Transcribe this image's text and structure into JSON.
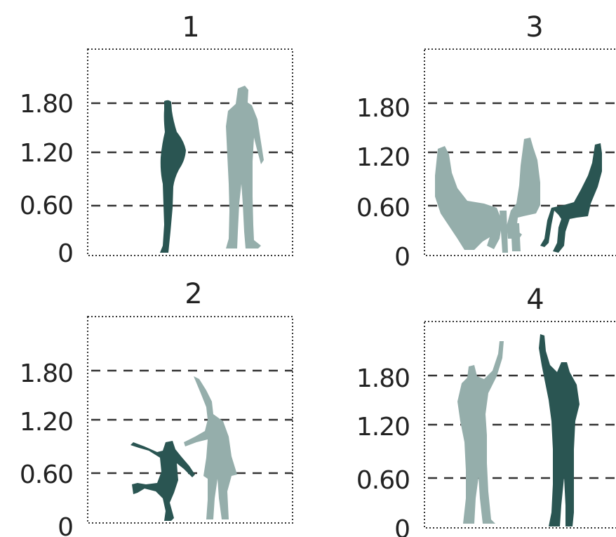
{
  "panels": [
    {
      "title": "1",
      "ticks": [
        "0",
        "0.60",
        "1.20",
        "1.80"
      ]
    },
    {
      "title": "3",
      "ticks": [
        "0",
        "0.60",
        "1.20",
        "1.80"
      ]
    },
    {
      "title": "2",
      "ticks": [
        "0",
        "0.60",
        "1.20",
        "1.80"
      ]
    },
    {
      "title": "4",
      "ticks": [
        "0",
        "0.60",
        "1.20",
        "1.80"
      ]
    }
  ],
  "colors": {
    "dark_figure": "#2a5552",
    "light_figure": "#95aeab",
    "gridline": "#333333"
  }
}
